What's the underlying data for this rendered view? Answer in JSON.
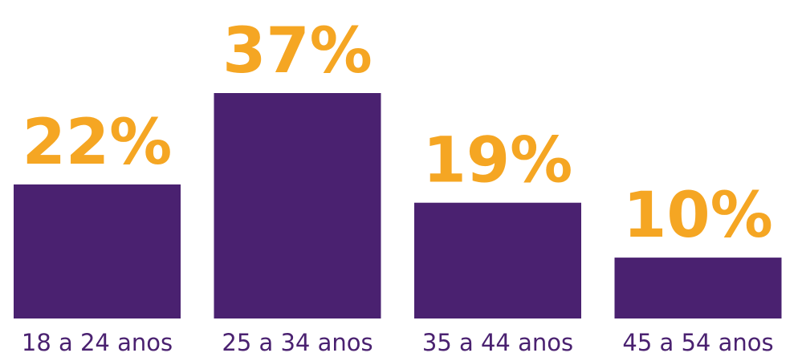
{
  "chart_data": {
    "type": "bar",
    "categories": [
      "18 a 24 anos",
      "25 a 34 anos",
      "35 a 44 anos",
      "45 a 54 anos"
    ],
    "values": [
      22,
      37,
      19,
      10
    ],
    "value_labels": [
      "22%",
      "37%",
      "19%",
      "10%"
    ],
    "title": "",
    "xlabel": "",
    "ylabel": "",
    "ylim": [
      0,
      37
    ],
    "grid": false,
    "legend": "none",
    "colors": {
      "bar": "#4a2170",
      "value_label": "#f5a623",
      "category_label": "#4a2170",
      "background": "#ffffff"
    }
  }
}
